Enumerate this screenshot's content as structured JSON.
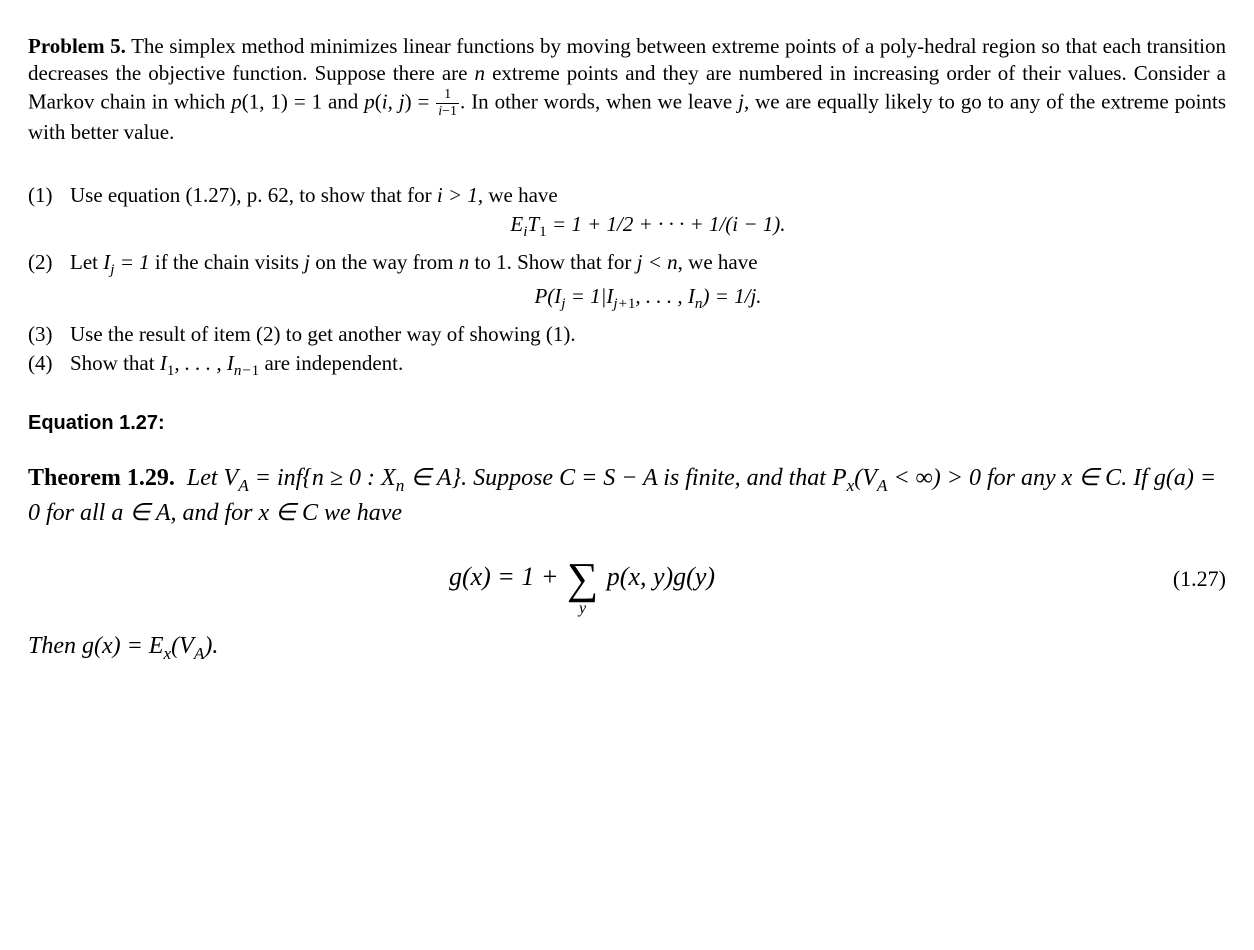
{
  "problem": {
    "label": "Problem 5.",
    "text_a": "The simplex method minimizes linear functions by moving between extreme points of a poly-hedral region so that each transition decreases the objective function. Suppose there are ",
    "n_var": "n",
    "text_b": " extreme points and they are numbered in increasing order of their values. Consider a Markov chain in which ",
    "p11_lhs": "p",
    "p11_args": "(1, 1) = 1",
    "text_c": " and ",
    "pij_lhs": "p",
    "pij_args_open": "(",
    "pij_i": "i",
    "pij_comma": ", ",
    "pij_j": "j",
    "pij_args_close": ") = ",
    "frac_num": "1",
    "frac_den_a": "i",
    "frac_den_b": "−1",
    "text_d": ". In other words, when we leave ",
    "j_var": "j",
    "text_e": ", we are equally likely to go to any of the extreme points with better value."
  },
  "parts": {
    "p1": {
      "label": "(1)",
      "text_a": "Use equation (1.27), p. 62, to show that for ",
      "i_gt_1": "i > 1",
      "text_b": ", we have",
      "eq": "E<sub>i</sub>T<sub><span class=\"up\">1</span></sub> = 1 + 1/2 + · · · + 1/(i − 1)."
    },
    "p2": {
      "label": "(2)",
      "text_a": "Let ",
      "ij_def": "I<sub>j</sub> = 1",
      "text_b": " if the chain visits ",
      "j_var": "j",
      "text_c": " on the way from ",
      "n_var": "n",
      "text_d": " to 1. Show that for ",
      "j_lt_n": "j < n",
      "text_e": ", we have",
      "eq": "P(I<sub>j</sub> = 1|I<sub>j+<span class=\"up\">1</span></sub>, . . . , I<sub>n</sub>) = 1/j."
    },
    "p3": {
      "label": "(3)",
      "text": "Use the result of item (2) to get another way of showing (1)."
    },
    "p4": {
      "label": "(4)",
      "text_a": "Show that ",
      "seq": "I<sub><span class=\"up\">1</span></sub>, . . . , I<sub>n−<span class=\"up\">1</span></sub>",
      "text_b": " are independent."
    }
  },
  "eq_section_heading": "Equation 1.27:",
  "theorem": {
    "label": "Theorem 1.29.",
    "body_a": "Let V",
    "body_a_sub": "A",
    "body_b": " = inf{n ≥ 0 : X",
    "body_b_sub": "n",
    "body_c": " ∈ A}. Suppose C = S − A is finite, and that P",
    "body_c_sub": "x",
    "body_d": "(V",
    "body_d_sub": "A",
    "body_e": " < ∞) > 0 for any x ∈ C. If g(a) = 0 for all a ∈ A, and for x ∈ C we have",
    "eq_lhs": "g(x) = 1 + ",
    "eq_sum_sub": "y",
    "eq_rhs": " p(x, y)g(y)",
    "eq_number": "(1.27)",
    "then_a": "Then g(x) = E",
    "then_sub": "x",
    "then_b": "(V",
    "then_b_sub": "A",
    "then_c": ")."
  }
}
